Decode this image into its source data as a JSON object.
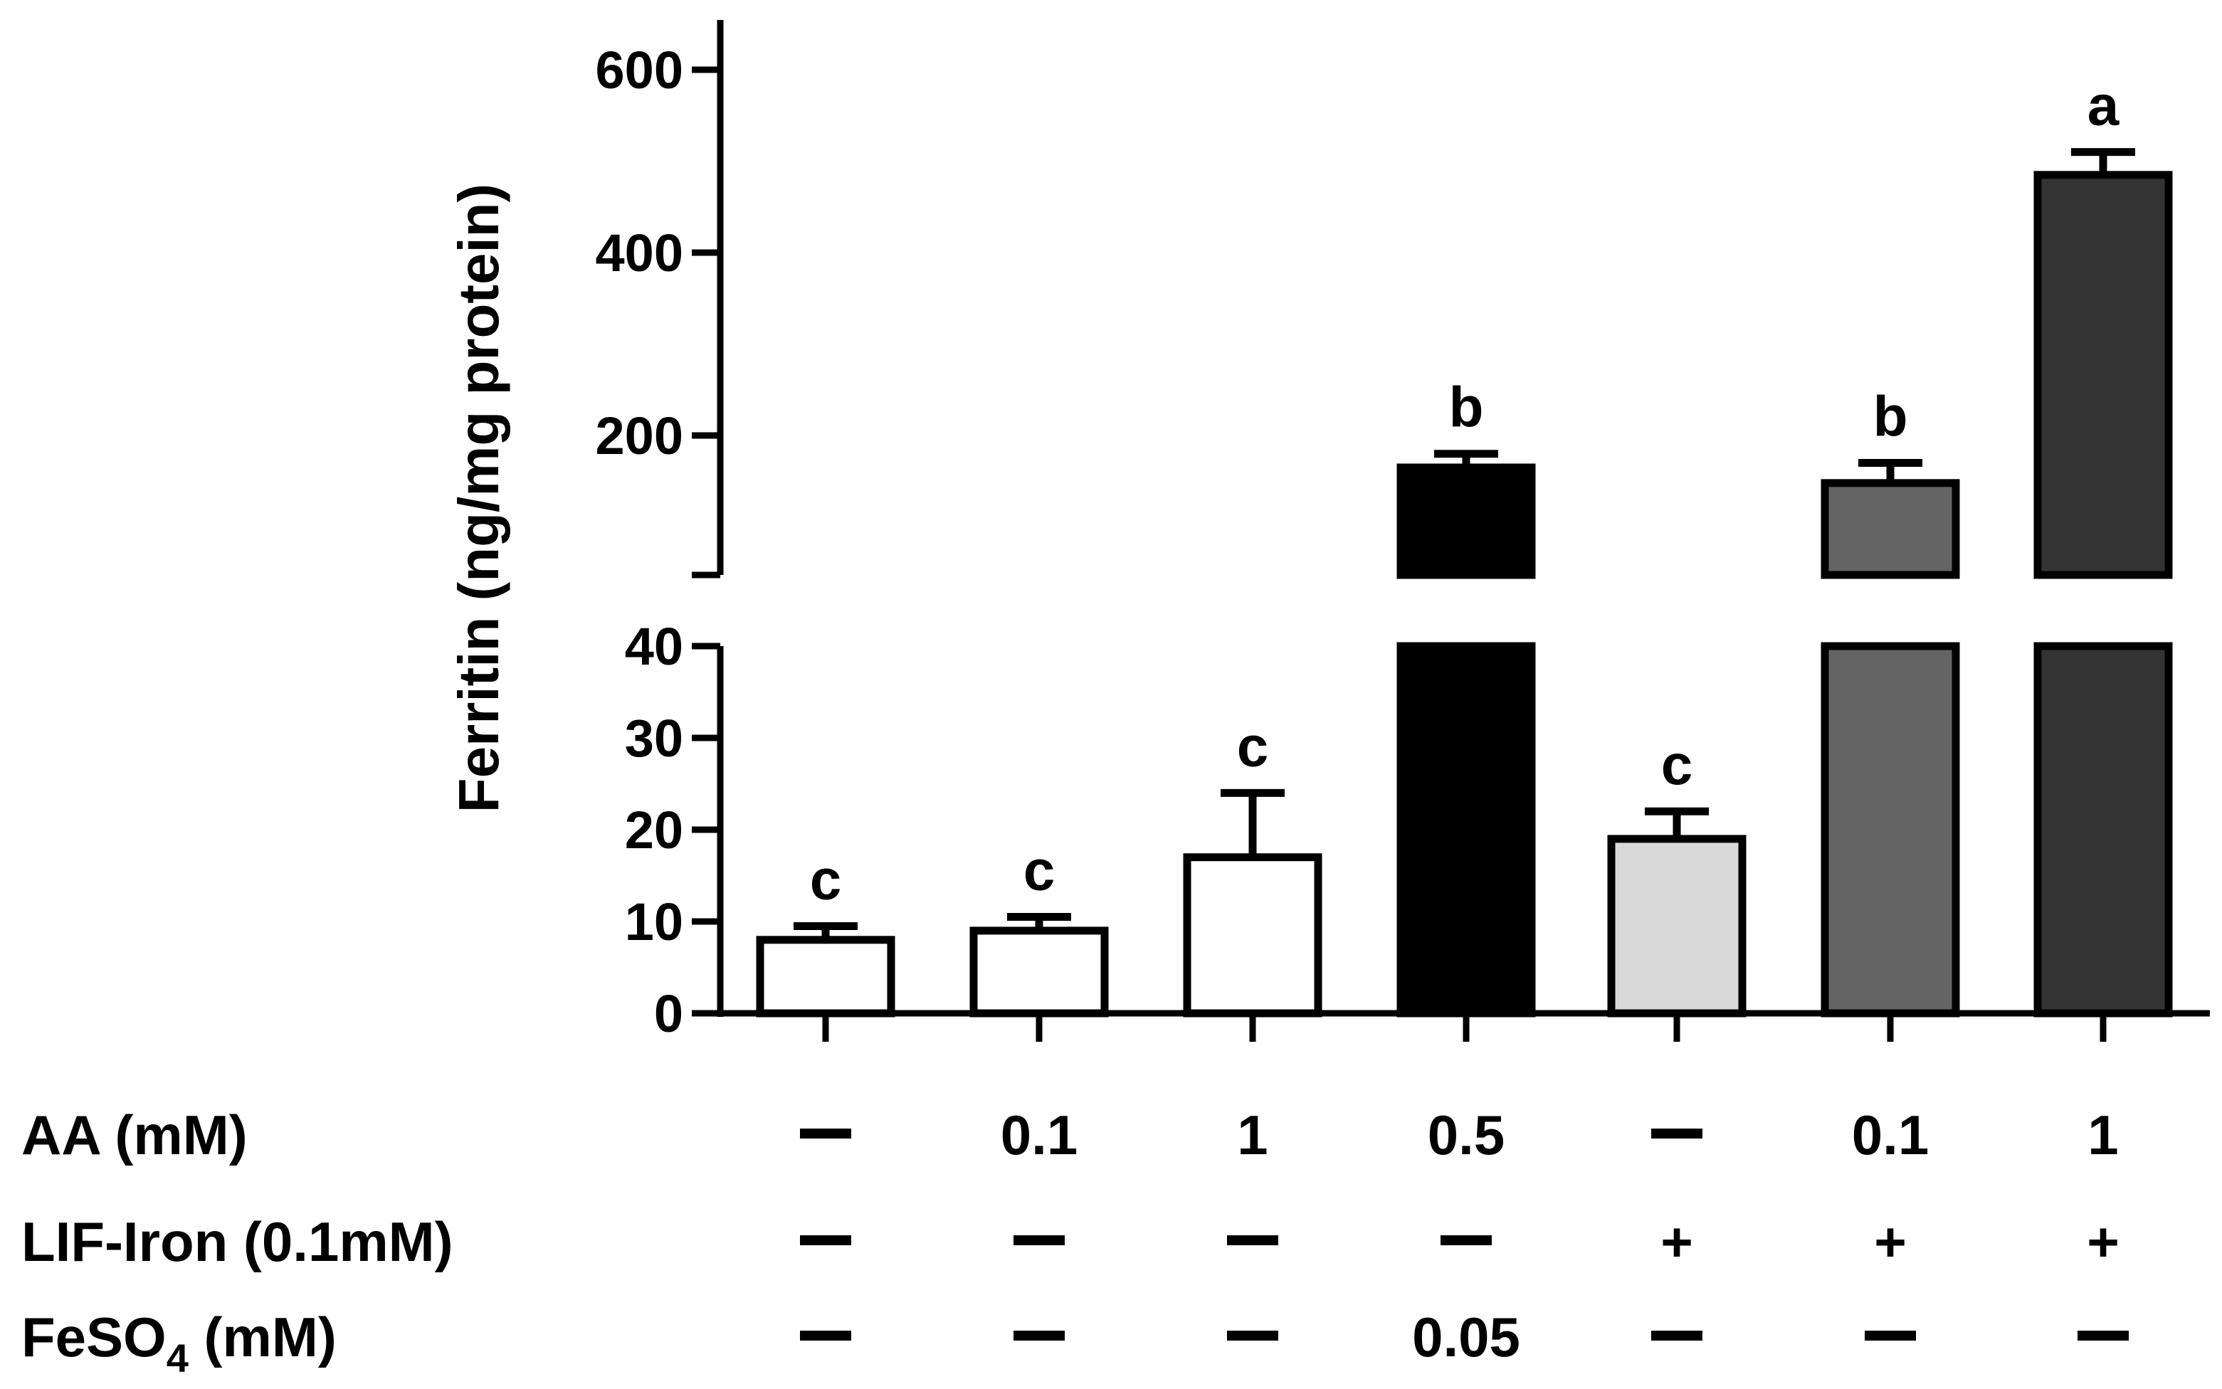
{
  "chart_data": {
    "type": "bar",
    "title": "",
    "xlabel": "",
    "ylabel": "Ferritin (ng/mg protein)",
    "y_axis_break": {
      "lower_range": [
        0,
        40
      ],
      "upper_range": [
        100,
        650
      ]
    },
    "y_ticks_lower": [
      0,
      10,
      20,
      30,
      40
    ],
    "y_ticks_lower_labels": [
      "0",
      "10",
      "20",
      "30",
      "40"
    ],
    "y_ticks_upper": [
      200,
      400,
      600
    ],
    "y_ticks_upper_labels": [
      "200",
      "400",
      "600"
    ],
    "bars": [
      {
        "value": 8,
        "error": 1.5,
        "letter": "c",
        "fill": "#ffffff"
      },
      {
        "value": 9,
        "error": 1.5,
        "letter": "c",
        "fill": "#ffffff"
      },
      {
        "value": 17,
        "error": 7,
        "letter": "c",
        "fill": "#ffffff"
      },
      {
        "value": 165,
        "error": 15,
        "letter": "b",
        "fill": "#000000"
      },
      {
        "value": 19,
        "error": 3,
        "letter": "c",
        "fill": "#d9d9d9"
      },
      {
        "value": 148,
        "error": 22,
        "letter": "b",
        "fill": "#646464"
      },
      {
        "value": 485,
        "error": 25,
        "letter": "a",
        "fill": "#333333"
      }
    ],
    "treatment_table": {
      "rows": [
        {
          "label": "AA (mM)",
          "values": [
            "—",
            "0.1",
            "1",
            "0.5",
            "—",
            "0.1",
            "1"
          ]
        },
        {
          "label": "LIF-Iron (0.1mM)",
          "values": [
            "—",
            "—",
            "—",
            "—",
            "+",
            "+",
            "+"
          ]
        },
        {
          "label_main": "FeSO",
          "label_sub": "4",
          "label_rest": " (mM)",
          "values": [
            "—",
            "—",
            "—",
            "0.05",
            "—",
            "—",
            "—"
          ]
        }
      ]
    }
  }
}
